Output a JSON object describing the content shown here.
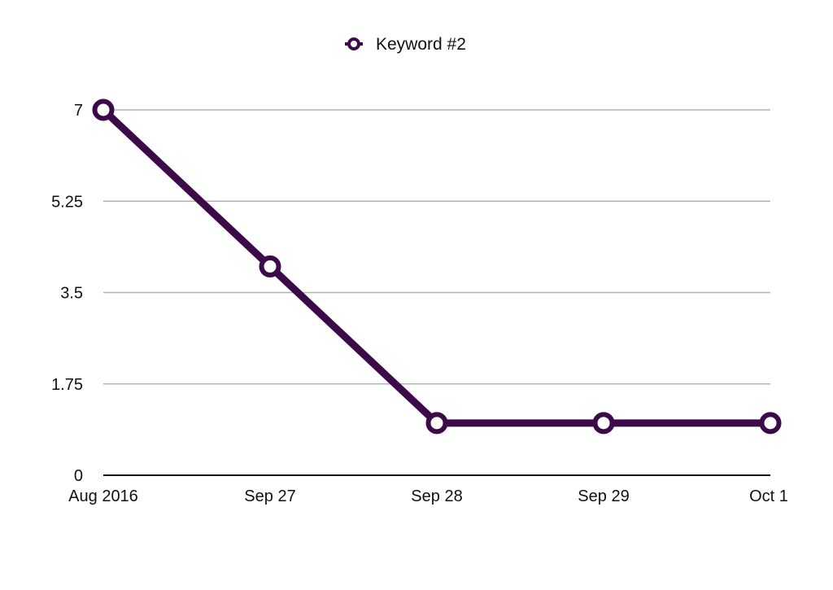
{
  "chart_data": {
    "type": "line",
    "categories": [
      "Aug 2016",
      "Sep 27",
      "Sep 28",
      "Sep 29",
      "Oct 1"
    ],
    "series": [
      {
        "name": "Keyword #2",
        "values": [
          7,
          4,
          1,
          1,
          1
        ]
      }
    ],
    "y_ticks": [
      "0",
      "1.75",
      "3.5",
      "5.25",
      "7"
    ],
    "ylim": [
      0,
      7
    ],
    "grid": true,
    "legend_position": "top-center",
    "line_color": "#3d0a49"
  }
}
